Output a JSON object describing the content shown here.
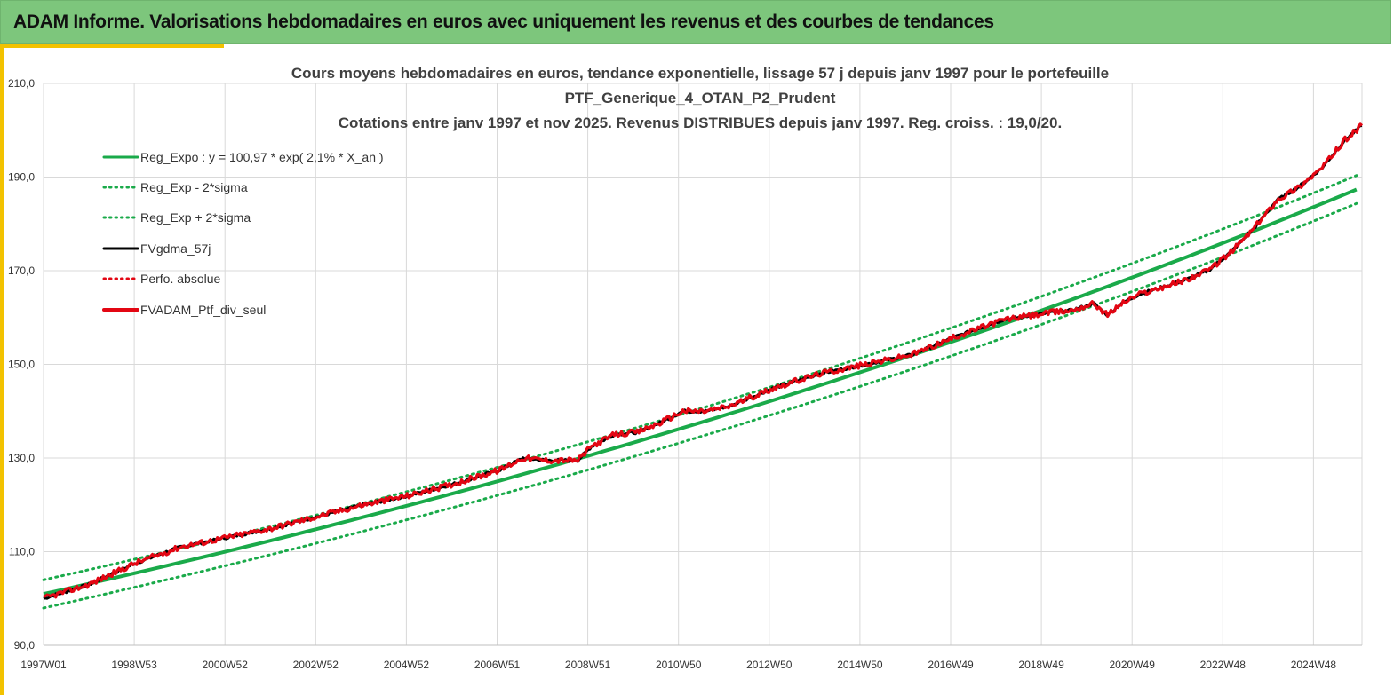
{
  "header": {
    "title": "ADAM Informe. Valorisations hebdomadaires en euros avec uniquement les revenus et des courbes de tendances"
  },
  "colors": {
    "header_bg": "#7dc67c",
    "accent": "#f2c200",
    "trend": "#1aaa4a",
    "black": "#000000",
    "red": "#e30613"
  },
  "chart_data": {
    "type": "line",
    "title_lines": [
      "Cours moyens hebdomadaires  en euros, tendance exponentielle, lissage 57 j depuis janv 1997 pour le portefeuille",
      "PTF_Generique_4_OTAN_P2_Prudent",
      "Cotations entre janv 1997 et nov 2025. Revenus DISTRIBUES depuis janv 1997. Reg. croiss. : 19,0/20."
    ],
    "xlabel": "",
    "ylabel": "",
    "ylim": [
      90,
      210
    ],
    "y_ticks": [
      "90,0",
      "110,0",
      "130,0",
      "150,0",
      "170,0",
      "190,0",
      "210,0"
    ],
    "x_ticks": [
      "1997W01",
      "1998W53",
      "2000W52",
      "2002W52",
      "2004W52",
      "2006W51",
      "2008W51",
      "2010W50",
      "2012W50",
      "2014W50",
      "2016W49",
      "2018W49",
      "2020W49",
      "2022W48",
      "2024W48"
    ],
    "x_range": [
      1997.0,
      2025.87
    ],
    "grid": true,
    "legend_position": "top-left",
    "legend": [
      {
        "label": "Reg_Expo : y = 100,97 * exp( 2,1% *  X_an )",
        "style": "solid",
        "color": "#1aaa4a"
      },
      {
        "label": "Reg_Exp - 2*sigma",
        "style": "dotted",
        "color": "#1aaa4a"
      },
      {
        "label": "Reg_Exp + 2*sigma",
        "style": "dotted",
        "color": "#1aaa4a"
      },
      {
        "label": "FVgdma_57j",
        "style": "solid",
        "color": "#000000"
      },
      {
        "label": "Perfo. absolue",
        "style": "dotted",
        "color": "#e30613"
      },
      {
        "label": "FVADAM_Ptf_div_seul",
        "style": "solid",
        "color": "#e30613"
      }
    ],
    "regression": {
      "a": 100.97,
      "rate": 0.0215,
      "sigma_offset": 3.0
    },
    "series": [
      {
        "name": "FVADAM_Ptf_div_seul",
        "x": [
          1997.0,
          1998.0,
          1999.0,
          2000.0,
          2001.0,
          2002.0,
          2003.0,
          2004.0,
          2005.0,
          2006.0,
          2007.0,
          2007.5,
          2008.0,
          2008.7,
          2009.0,
          2009.5,
          2010.0,
          2010.5,
          2011.0,
          2011.5,
          2012.0,
          2013.0,
          2014.0,
          2015.0,
          2016.0,
          2017.0,
          2018.0,
          2019.0,
          2019.5,
          2020.0,
          2020.3,
          2020.6,
          2021.0,
          2022.0,
          2022.5,
          2023.0,
          2023.5,
          2024.0,
          2024.5,
          2025.0,
          2025.5,
          2025.87
        ],
        "values": [
          100.0,
          103.0,
          107.5,
          111.0,
          113.0,
          115.0,
          117.5,
          120.0,
          122.0,
          124.5,
          127.5,
          130.0,
          129.5,
          129.5,
          132.5,
          135.0,
          135.5,
          137.5,
          140.0,
          140.0,
          141.0,
          145.0,
          148.0,
          150.0,
          152.0,
          156.0,
          159.5,
          161.0,
          161.5,
          163.0,
          160.5,
          163.0,
          165.0,
          168.0,
          170.0,
          174.0,
          179.0,
          185.0,
          188.0,
          192.0,
          198.0,
          201.0
        ]
      }
    ]
  }
}
